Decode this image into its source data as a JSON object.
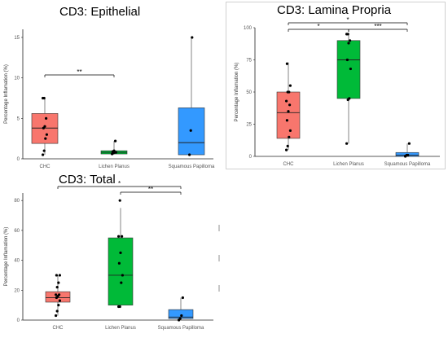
{
  "colors": {
    "chc": "#f8766d",
    "lichen": "#00ba38",
    "squamous": "#3399ff"
  },
  "chart_data": [
    {
      "type": "box",
      "title": "CD3: Epithelial",
      "ylabel": "Percentage Inflamation (%)",
      "xlabel": "",
      "ylim": [
        0,
        16
      ],
      "yticks": [
        0,
        5,
        10,
        15
      ],
      "categories": [
        "CHC",
        "Lichen Planus",
        "Squamous Papilloma"
      ],
      "boxes": [
        {
          "category": "CHC",
          "min": 0.5,
          "q1": 1.9,
          "median": 3.8,
          "q3": 5.6,
          "max": 7.5,
          "points": [
            0.5,
            1.0,
            2.5,
            3.0,
            3.8,
            4.0,
            5.0,
            7.5,
            7.5
          ]
        },
        {
          "category": "Lichen Planus",
          "min": 0.6,
          "q1": 0.6,
          "median": 0.8,
          "q3": 1.0,
          "max": 2.2,
          "points": [
            0.6,
            0.7,
            0.8,
            0.8,
            0.9,
            1.0,
            2.2
          ]
        },
        {
          "category": "Squamous Papilloma",
          "min": 0.5,
          "q1": 0.5,
          "median": 2.0,
          "q3": 6.3,
          "max": 15.0,
          "points": [
            0.5,
            3.5,
            15.0
          ]
        }
      ],
      "significance": [
        {
          "from": 0,
          "to": 1,
          "label": "**",
          "level": 0
        }
      ]
    },
    {
      "type": "box",
      "title": "CD3: Lamina Propria",
      "ylabel": "Percentage Inflamation (%)",
      "xlabel": "",
      "ylim": [
        0,
        100
      ],
      "yticks": [
        0,
        25,
        50,
        75,
        100
      ],
      "categories": [
        "CHC",
        "Lichen Planus",
        "Squamous Papilloma"
      ],
      "boxes": [
        {
          "category": "CHC",
          "min": 5,
          "q1": 14,
          "median": 34,
          "q3": 50,
          "max": 73,
          "points": [
            5,
            8,
            15,
            20,
            28,
            35,
            40,
            43,
            50,
            50,
            55,
            72
          ]
        },
        {
          "category": "Lichen Planus",
          "min": 10,
          "q1": 45,
          "median": 75,
          "q3": 90,
          "max": 95,
          "points": [
            10,
            44,
            45,
            68,
            75,
            88,
            90,
            95,
            95
          ]
        },
        {
          "category": "Squamous Papilloma",
          "min": 0,
          "q1": 0,
          "median": 1,
          "q3": 3,
          "max": 10,
          "points": [
            0,
            1,
            1,
            10
          ]
        }
      ],
      "significance": [
        {
          "from": 0,
          "to": 2,
          "label": "*",
          "level": 1
        },
        {
          "from": 0,
          "to": 1,
          "label": "*",
          "level": 0
        },
        {
          "from": 1,
          "to": 2,
          "label": "***",
          "level": 0
        }
      ]
    },
    {
      "type": "box",
      "title": "CD3: Total",
      "ylabel": "Percentage Inflamation (%)",
      "xlabel": "",
      "ylim": [
        0,
        85
      ],
      "yticks": [
        0,
        20,
        40,
        60,
        80
      ],
      "categories": [
        "CHC",
        "Lichen Planus",
        "Squamous Papilloma"
      ],
      "boxes": [
        {
          "category": "CHC",
          "min": 3,
          "q1": 12,
          "median": 15,
          "q3": 19,
          "max": 30,
          "points": [
            3,
            6,
            10,
            13,
            15,
            16,
            17,
            17,
            22,
            25,
            30,
            30
          ]
        },
        {
          "category": "Lichen Planus",
          "min": 9,
          "q1": 10,
          "median": 30,
          "q3": 55,
          "max": 75,
          "points": [
            9,
            9,
            25,
            30,
            38,
            45,
            56,
            56,
            80
          ]
        },
        {
          "category": "Squamous Papilloma",
          "min": 0,
          "q1": 1,
          "median": 2,
          "q3": 7,
          "max": 15,
          "points": [
            0,
            1,
            3,
            15
          ]
        }
      ],
      "significance": [
        {
          "from": 0,
          "to": 2,
          "label": "*",
          "level": 1
        },
        {
          "from": 1,
          "to": 2,
          "label": "**",
          "level": 0
        }
      ]
    }
  ]
}
